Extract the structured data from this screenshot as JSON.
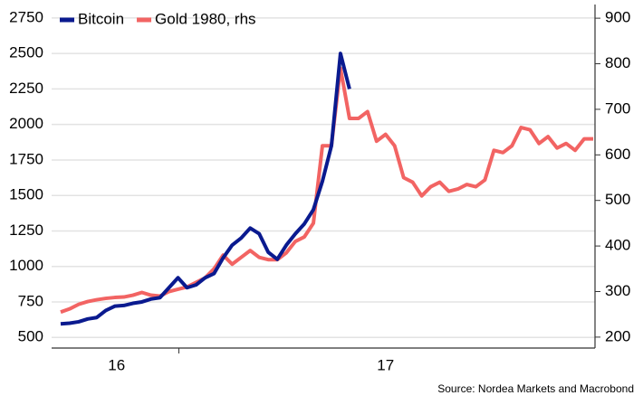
{
  "chart_data": {
    "type": "line",
    "x": [
      1,
      2,
      3,
      4,
      5,
      6,
      7,
      8,
      9,
      10,
      11,
      12,
      13,
      14,
      15,
      16,
      17,
      18,
      19,
      20,
      21,
      22,
      23,
      24,
      25,
      26,
      27,
      28,
      29,
      30,
      31,
      32,
      33,
      34,
      35,
      36,
      37,
      38,
      39,
      40,
      41,
      42,
      43,
      44,
      45,
      46,
      47,
      48,
      49,
      50,
      51,
      52,
      53,
      54,
      55,
      56,
      57,
      58,
      59,
      60
    ],
    "xlim": [
      0,
      60.2
    ],
    "xticks": [
      14.1
    ],
    "x_labels": [
      {
        "value": 7.2,
        "label": "16"
      },
      {
        "value": 37,
        "label": "17"
      }
    ],
    "series": [
      {
        "name": "Bitcoin",
        "color": "#0a1a8f",
        "axis": "y",
        "values": [
          595,
          600,
          610,
          630,
          640,
          690,
          720,
          725,
          740,
          750,
          770,
          780,
          850,
          920,
          850,
          870,
          920,
          950,
          1060,
          1150,
          1200,
          1270,
          1230,
          1100,
          1050,
          1150,
          1230,
          1300,
          1400,
          1600,
          1850,
          2500,
          2250,
          null,
          null,
          null,
          null,
          null,
          null,
          null,
          null,
          null,
          null,
          null,
          null,
          null,
          null,
          null,
          null,
          null,
          null,
          null,
          null,
          null,
          null,
          null,
          null,
          null,
          null,
          null
        ]
      },
      {
        "name": "Gold 1980, rhs",
        "color": "#f26463",
        "axis": "y2",
        "values": [
          255,
          262,
          272,
          278,
          282,
          285,
          287,
          288,
          292,
          298,
          292,
          290,
          300,
          305,
          310,
          320,
          330,
          350,
          380,
          360,
          375,
          390,
          375,
          370,
          370,
          385,
          410,
          420,
          450,
          620,
          620,
          790,
          680,
          680,
          695,
          630,
          645,
          620,
          550,
          540,
          510,
          530,
          540,
          520,
          525,
          535,
          530,
          545,
          610,
          605,
          620,
          660,
          655,
          625,
          640,
          615,
          625,
          610,
          635,
          635
        ]
      }
    ],
    "ylim": [
      425,
      2845
    ],
    "yticks": [
      500,
      750,
      1000,
      1250,
      1500,
      1750,
      2000,
      2250,
      2500,
      2750
    ],
    "y2lim": [
      176,
      930
    ],
    "y2ticks": [
      200,
      300,
      400,
      500,
      600,
      700,
      800,
      900
    ],
    "grid": true,
    "legend": "top-left",
    "source": "Source: Nordea Markets and Macrobond"
  }
}
